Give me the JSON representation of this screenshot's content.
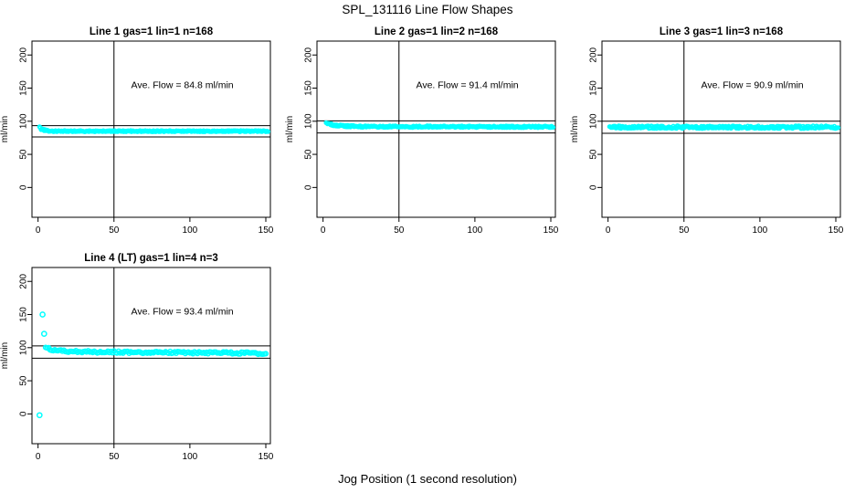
{
  "chart_data": {
    "type": "scatter",
    "title": "SPL_131116  Line Flow Shapes",
    "xlabel": "Jog Position (1 second resolution)",
    "ylabel": "ml/min",
    "x_ticks": [
      0,
      50,
      100,
      150
    ],
    "y_ticks": [
      0,
      50,
      100,
      150,
      200
    ],
    "xlim": [
      -4,
      153
    ],
    "ylim": [
      -45,
      221
    ],
    "grid": false,
    "point_color": "#00FFFF",
    "line_color": "#000000",
    "background": "#FFFFFF",
    "vline_x": 50,
    "annotation_pos": {
      "x": 95,
      "y": 150
    },
    "panels": [
      {
        "title": "Line 1 gas=1 lin=1 n=168",
        "ave_flow": 84.8,
        "ave_flow_label": "Ave. Flow =  84.8  ml/min",
        "ref_lines": [
          93.3,
          76.3
        ],
        "profile": [
          [
            1,
            91
          ],
          [
            2,
            88
          ],
          [
            4,
            86.5
          ],
          [
            8,
            85
          ],
          [
            151,
            85
          ]
        ],
        "jitter": 0.9,
        "layers": 2,
        "point_r": 1.9,
        "seed": 3,
        "outliers": []
      },
      {
        "title": "Line 2 gas=1 lin=2 n=168",
        "ave_flow": 91.4,
        "ave_flow_label": "Ave. Flow =  91.4  ml/min",
        "ref_lines": [
          100.5,
          82.3
        ],
        "profile": [
          [
            2,
            98
          ],
          [
            4,
            96
          ],
          [
            7,
            94
          ],
          [
            12,
            93
          ],
          [
            25,
            92
          ],
          [
            151,
            91.5
          ]
        ],
        "jitter": 1.2,
        "layers": 2,
        "point_r": 1.9,
        "seed": 7,
        "outliers": []
      },
      {
        "title": "Line 3 gas=1 lin=3 n=168",
        "ave_flow": 90.9,
        "ave_flow_label": "Ave. Flow =  90.9  ml/min",
        "ref_lines": [
          100.0,
          81.8
        ],
        "profile": [
          [
            1,
            90
          ],
          [
            3,
            91
          ],
          [
            151,
            91
          ]
        ],
        "jitter": 2.0,
        "layers": 2,
        "point_r": 1.9,
        "seed": 13,
        "outliers": []
      },
      {
        "title": "Line 4 (LT) gas=1 lin=4 n=3",
        "ave_flow": 93.4,
        "ave_flow_label": "Ave. Flow =  93.4  ml/min",
        "ref_lines": [
          102.7,
          84.1
        ],
        "profile": [
          [
            5,
            101
          ],
          [
            7,
            98.5
          ],
          [
            10,
            96.5
          ],
          [
            18,
            94.5
          ],
          [
            40,
            93.5
          ],
          [
            150,
            91.5
          ]
        ],
        "jitter": 1.6,
        "layers": 1,
        "point_r": 2.4,
        "seed": 21,
        "outliers": [
          [
            1,
            -2
          ],
          [
            3,
            150
          ],
          [
            4,
            121
          ]
        ]
      }
    ]
  }
}
